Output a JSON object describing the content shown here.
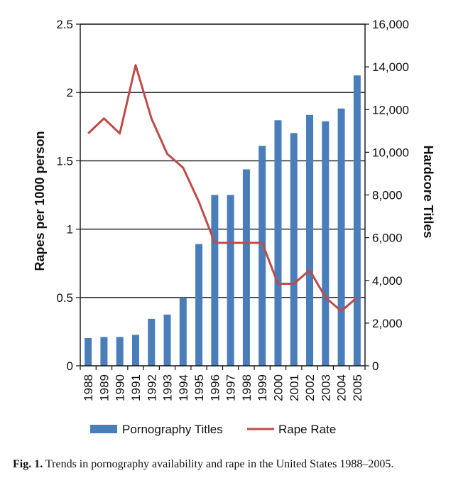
{
  "caption": {
    "label": "Fig. 1.",
    "text": "Trends in pornography availability and rape in the United States 1988–2005."
  },
  "colors": {
    "bars": "#4a7ebb",
    "line": "#be4b48"
  },
  "chart_data": {
    "type": "bar+line",
    "categories": [
      "1988",
      "1989",
      "1990",
      "1991",
      "1992",
      "1993",
      "1994",
      "1995",
      "1996",
      "1997",
      "1998",
      "1999",
      "2000",
      "2001",
      "2002",
      "2003",
      "2004",
      "2005"
    ],
    "series": [
      {
        "name": "Pornography Titles",
        "type": "bar",
        "axis": "right",
        "values": [
          1300,
          1350,
          1350,
          1450,
          2200,
          2400,
          3200,
          5700,
          8000,
          8000,
          9200,
          10300,
          11500,
          10900,
          11750,
          11450,
          12050,
          13600
        ]
      },
      {
        "name": "Rape Rate",
        "type": "line",
        "axis": "left",
        "values": [
          1.7,
          1.81,
          1.7,
          2.2,
          1.81,
          1.55,
          1.45,
          1.2,
          0.9,
          0.9,
          0.9,
          0.9,
          0.6,
          0.6,
          0.7,
          0.5,
          0.4,
          0.5
        ]
      }
    ],
    "ylabel_left": "Rapes per 1000 person",
    "ylabel_right": "Hardcore Titles",
    "ylim_left": [
      0,
      2.5
    ],
    "ylim_right": [
      0,
      16000
    ],
    "yticks_left": [
      "0",
      "0.5",
      "1",
      "1.5",
      "2",
      "2.5"
    ],
    "yticks_right": [
      "0",
      "2,000",
      "4,000",
      "6,000",
      "8,000",
      "10,000",
      "12,000",
      "14,000",
      "16,000"
    ],
    "grid": "horizontal",
    "legend_position": "bottom"
  }
}
